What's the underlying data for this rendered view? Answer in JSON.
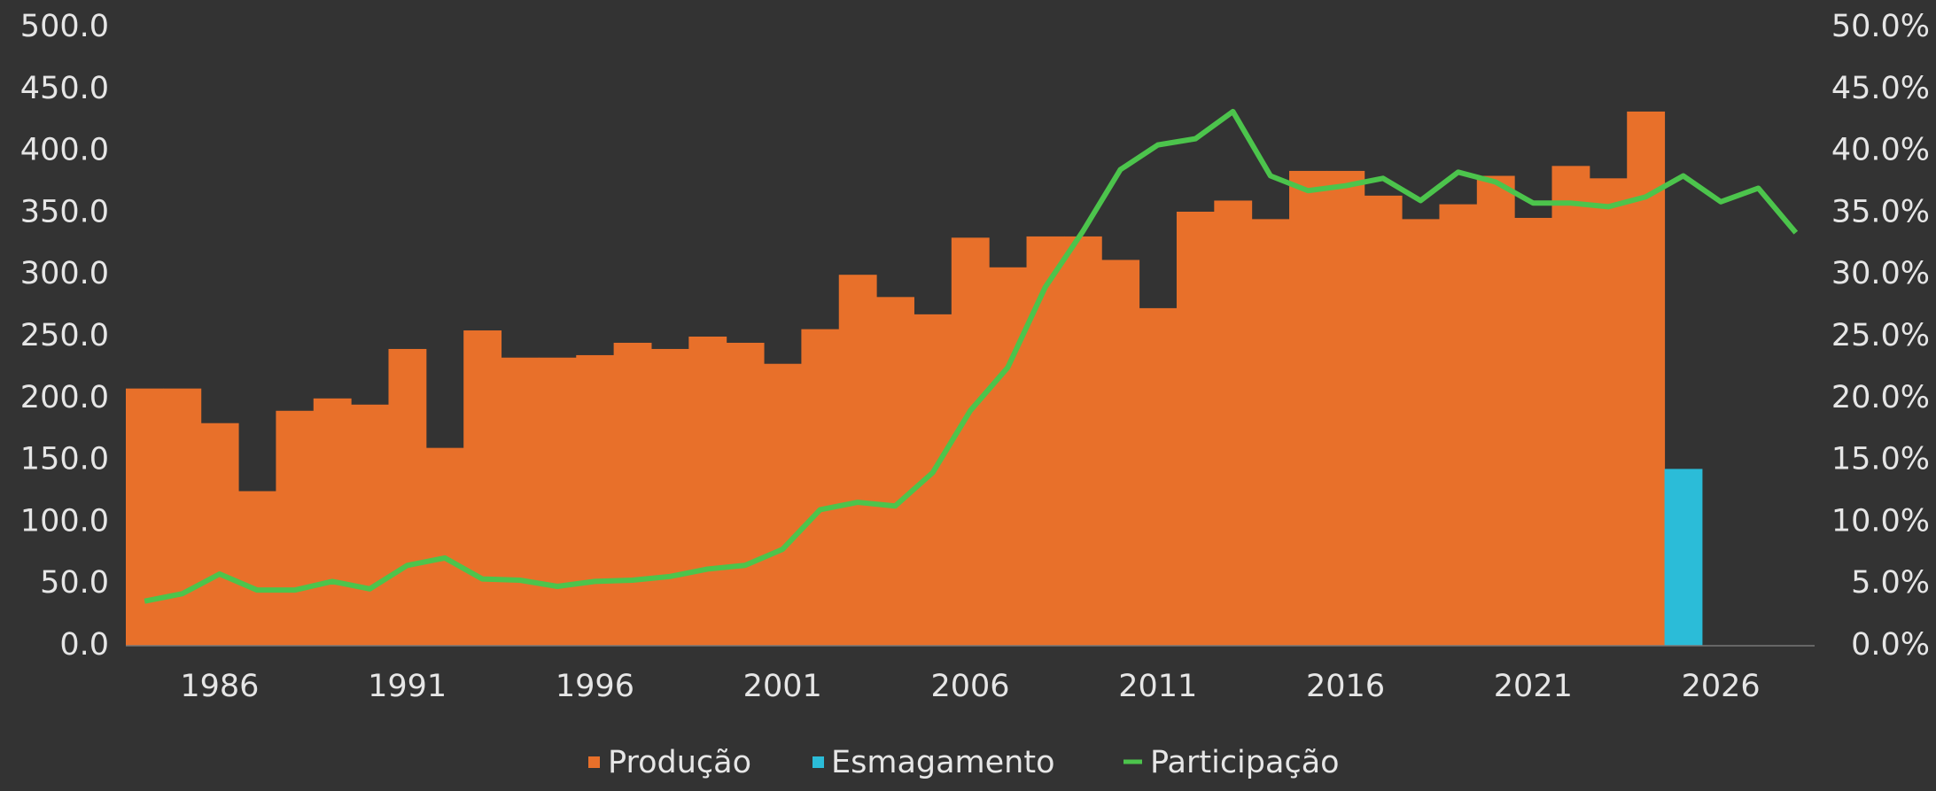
{
  "chart_data": {
    "type": "bar-line",
    "categories": [
      null,
      null,
      "1986",
      null,
      null,
      null,
      null,
      "1991",
      null,
      null,
      null,
      null,
      "1996",
      null,
      null,
      null,
      null,
      "2001",
      null,
      null,
      null,
      null,
      "2006",
      null,
      null,
      null,
      null,
      "2011",
      null,
      null,
      null,
      null,
      "2016",
      null,
      null,
      null,
      null,
      "2021",
      null,
      null,
      null,
      null,
      "2026",
      null,
      null
    ],
    "series": [
      {
        "name": "Produção",
        "color": "#e8702a",
        "type": "bar",
        "values": [
          208,
          208,
          180,
          125,
          190,
          200,
          195,
          240,
          160,
          255,
          233,
          233,
          235,
          245,
          240,
          250,
          245,
          228,
          256,
          300,
          282,
          268,
          330,
          306,
          331,
          331,
          312,
          273,
          351,
          360,
          345,
          384,
          384,
          364,
          345,
          357,
          380,
          346,
          388,
          378,
          432,
          null,
          null,
          null,
          null
        ]
      },
      {
        "name": "Esmagamento",
        "color": "#2bbcd8",
        "type": "bar",
        "values": [
          null,
          null,
          null,
          null,
          null,
          null,
          null,
          null,
          null,
          null,
          null,
          null,
          null,
          null,
          null,
          null,
          null,
          null,
          null,
          null,
          null,
          null,
          null,
          null,
          null,
          null,
          null,
          null,
          null,
          null,
          null,
          null,
          null,
          null,
          null,
          null,
          null,
          null,
          null,
          null,
          null,
          143,
          null,
          null,
          null
        ]
      },
      {
        "name": "Participação",
        "color": "#4cc44c",
        "type": "line",
        "axis": "y2",
        "values": [
          3.6,
          4.2,
          5.8,
          4.5,
          4.5,
          5.2,
          4.6,
          6.5,
          7.1,
          5.4,
          5.3,
          4.8,
          5.2,
          5.3,
          5.6,
          6.2,
          6.5,
          7.8,
          11.0,
          11.6,
          11.3,
          14.0,
          19.0,
          22.5,
          29.0,
          33.5,
          38.5,
          40.5,
          41.0,
          43.2,
          38.0,
          36.8,
          37.2,
          37.8,
          36.0,
          38.3,
          37.5,
          35.8,
          35.8,
          35.5,
          36.3,
          38.0,
          35.9,
          37.0,
          33.4
        ]
      }
    ],
    "ylim": [
      0,
      500
    ],
    "yticks": [
      {
        "value": 0,
        "label": "0.0"
      },
      {
        "value": 50,
        "label": "50.0"
      },
      {
        "value": 100,
        "label": "100.0"
      },
      {
        "value": 150,
        "label": "150.0"
      },
      {
        "value": 200,
        "label": "200.0"
      },
      {
        "value": 250,
        "label": "250.0"
      },
      {
        "value": 300,
        "label": "300.0"
      },
      {
        "value": 350,
        "label": "350.0"
      },
      {
        "value": 400,
        "label": "400.0"
      },
      {
        "value": 450,
        "label": "450.0"
      },
      {
        "value": 500,
        "label": "500.0"
      }
    ],
    "y2lim": [
      0,
      50
    ],
    "y2ticks": [
      {
        "value": 0,
        "label": "0.0%"
      },
      {
        "value": 5,
        "label": "5.0%"
      },
      {
        "value": 10,
        "label": "10.0%"
      },
      {
        "value": 15,
        "label": "15.0%"
      },
      {
        "value": 20,
        "label": "20.0%"
      },
      {
        "value": 25,
        "label": "25.0%"
      },
      {
        "value": 30,
        "label": "30.0%"
      },
      {
        "value": 35,
        "label": "35.0%"
      },
      {
        "value": 40,
        "label": "40.0%"
      },
      {
        "value": 45,
        "label": "45.0%"
      },
      {
        "value": 50,
        "label": "50.0%"
      }
    ],
    "grid": false,
    "legend": "bottom"
  }
}
